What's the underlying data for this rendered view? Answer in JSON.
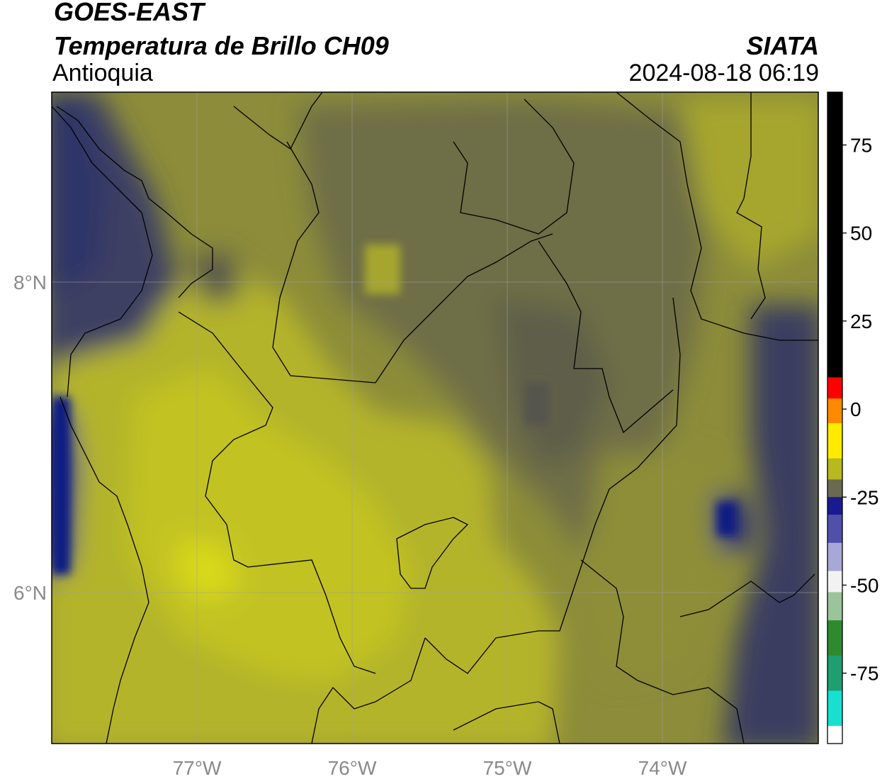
{
  "header": {
    "satellite": "GOES-EAST",
    "product": "Temperatura de Brillo CH09",
    "region": "Antioquia",
    "agency": "SIATA",
    "datetime": "2024-08-18 06:19"
  },
  "map": {
    "lon_range": [
      -77.95,
      -72.98
    ],
    "lat_range": [
      4.95,
      9.16
    ],
    "x_ticks": [
      "77°W",
      "76°W",
      "75°W",
      "74°W"
    ],
    "y_ticks": [
      "8°N",
      "6°N"
    ],
    "colors": {
      "yellow_bright": "#d8d81c",
      "yellow": "#b4b42a",
      "olive": "#8c8c3a",
      "olive_dark": "#6e6e46",
      "slate": "#55554e",
      "navy": "#2e3468",
      "deep_blue": "#0f1a82"
    }
  },
  "colorbar": {
    "ticks": [
      "75",
      "50",
      "25",
      "0",
      "-25",
      "-50",
      "-75"
    ],
    "range": [
      -95,
      90
    ],
    "segments": [
      {
        "from": 90,
        "to": 9,
        "color": "#000000"
      },
      {
        "from": 9,
        "to": 3,
        "color": "#ff0000"
      },
      {
        "from": 3,
        "to": -4,
        "color": "#ff8a00"
      },
      {
        "from": -4,
        "to": -14,
        "color": "#ffea00"
      },
      {
        "from": -14,
        "to": -20,
        "color": "#b8b820"
      },
      {
        "from": -20,
        "to": -25,
        "color": "#6a6a50"
      },
      {
        "from": -25,
        "to": -30,
        "color": "#1a1a90"
      },
      {
        "from": -30,
        "to": -38,
        "color": "#5050aa"
      },
      {
        "from": -38,
        "to": -46,
        "color": "#a8a8d6"
      },
      {
        "from": -46,
        "to": -52,
        "color": "#f2f2f2"
      },
      {
        "from": -52,
        "to": -60,
        "color": "#9bc49b"
      },
      {
        "from": -60,
        "to": -70,
        "color": "#2e8a2e"
      },
      {
        "from": -70,
        "to": -80,
        "color": "#1f9e72"
      },
      {
        "from": -80,
        "to": -90,
        "color": "#18e0d0"
      },
      {
        "from": -90,
        "to": -95,
        "color": "#ffffff"
      }
    ]
  }
}
